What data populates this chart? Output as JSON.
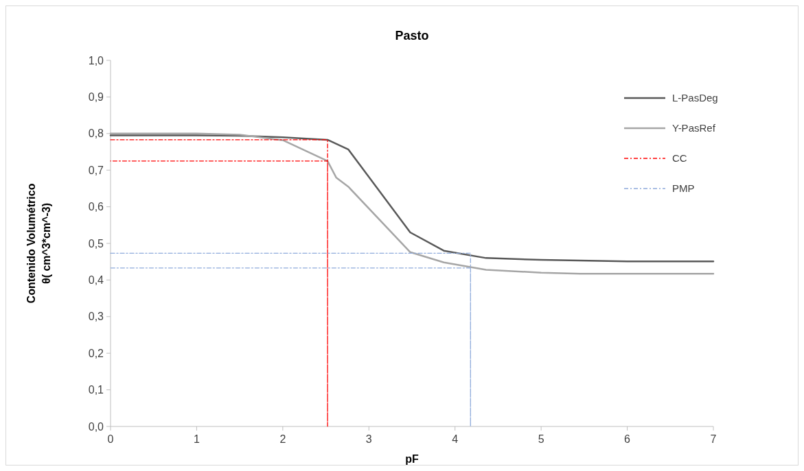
{
  "chart_data": {
    "type": "line",
    "title": "Pasto",
    "xlabel": "pF",
    "ylabel": "Contenido Volumétrico\nθ( cm^3*cm^-3)",
    "xlim": [
      0,
      7
    ],
    "xticks": [
      0,
      1,
      2,
      3,
      4,
      5,
      6,
      7
    ],
    "ylim": [
      0,
      1
    ],
    "yticks": [
      {
        "value": 0,
        "label": "0,0"
      },
      {
        "value": 0.1,
        "label": "0,1"
      },
      {
        "value": 0.2,
        "label": "0,2"
      },
      {
        "value": 0.3,
        "label": "0,3"
      },
      {
        "value": 0.4,
        "label": "0,4"
      },
      {
        "value": 0.5,
        "label": "0,5"
      },
      {
        "value": 0.6,
        "label": "0,6"
      },
      {
        "value": 0.7,
        "label": "0,7"
      },
      {
        "value": 0.8,
        "label": "0,8"
      },
      {
        "value": 0.9,
        "label": "0,9"
      },
      {
        "value": 1,
        "label": "1,0"
      }
    ],
    "grid": false,
    "legend": "right",
    "marker": "none",
    "series": [
      {
        "name": "L-PasDeg",
        "color": "#595959",
        "x": [
          0,
          1,
          1.5,
          2,
          2.52,
          2.76,
          3.48,
          3.87,
          4.36,
          5,
          6,
          7
        ],
        "values": [
          0.795,
          0.795,
          0.794,
          0.79,
          0.783,
          0.757,
          0.53,
          0.48,
          0.46,
          0.455,
          0.451,
          0.451
        ]
      },
      {
        "name": "Y-PasRef",
        "color": "#a6a6a6",
        "x": [
          0,
          1,
          1.5,
          2,
          2.52,
          2.62,
          2.76,
          3.48,
          3.87,
          4.36,
          5,
          5.45,
          7
        ],
        "values": [
          0.8,
          0.8,
          0.797,
          0.782,
          0.725,
          0.68,
          0.655,
          0.476,
          0.448,
          0.428,
          0.42,
          0.417,
          0.417
        ]
      },
      {
        "name": "CC",
        "color": "#ff0000",
        "line_style": "dashdot",
        "x": [
          0,
          2.52,
          2.52,
          2.52,
          0
        ],
        "values": [
          0.783,
          0.783,
          0,
          0.725,
          0.725
        ]
      },
      {
        "name": "PMP",
        "color": "#8eaadb",
        "line_style": "dashdot",
        "x": [
          0,
          4.18,
          4.18,
          4.18,
          0
        ],
        "values": [
          0.473,
          0.473,
          0,
          0.433,
          0.433
        ]
      }
    ]
  }
}
